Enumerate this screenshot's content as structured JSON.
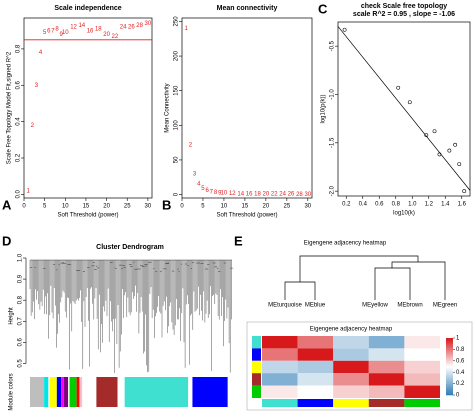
{
  "chart_data": [
    {
      "type": "text-scatter",
      "panel": "A",
      "title": "Scale independence",
      "xlabel": "Soft Threshold (power)",
      "ylabel": "Scale Free Topology Model Fit,signed R^2",
      "color": "#e41a1c",
      "x": [
        1,
        2,
        3,
        4,
        5,
        6,
        7,
        8,
        9,
        10,
        12,
        14,
        16,
        18,
        20,
        22,
        24,
        26,
        28,
        30
      ],
      "values": [
        0.02,
        0.38,
        0.6,
        0.78,
        0.89,
        0.9,
        0.9,
        0.91,
        0.88,
        0.89,
        0.92,
        0.93,
        0.9,
        0.91,
        0.88,
        0.87,
        0.92,
        0.92,
        0.93,
        0.94
      ],
      "xlim": [
        0,
        31
      ],
      "xticks": [
        0,
        5,
        10,
        15,
        20,
        25,
        30
      ],
      "ylim": [
        -0.02,
        0.97
      ],
      "yticks": [
        {
          "value": 0,
          "label": "0.0"
        },
        0.2,
        0.4,
        0.6,
        0.8
      ],
      "hline": 0.85
    },
    {
      "type": "text-scatter",
      "panel": "B",
      "title": "Mean connectivity",
      "xlabel": "Soft Threshold (power)",
      "ylabel": "Mean Connectivity",
      "color": "#e41a1c",
      "x": [
        1,
        2,
        3,
        4,
        5,
        6,
        7,
        8,
        9,
        10,
        12,
        14,
        16,
        18,
        20,
        22,
        24,
        26,
        28,
        30
      ],
      "values": [
        240,
        72,
        30,
        15,
        9,
        6,
        4,
        3,
        2.5,
        2,
        1.5,
        1.2,
        1,
        0.9,
        0.8,
        0.7,
        0.6,
        0.6,
        0.5,
        0.5
      ],
      "xlim": [
        0,
        31
      ],
      "xticks": [
        0,
        5,
        10,
        15,
        20,
        25,
        30
      ],
      "ylim": [
        -5,
        255
      ],
      "yticks": [
        0,
        50,
        100,
        150,
        200,
        250
      ]
    },
    {
      "type": "scatter",
      "panel": "C",
      "title": "check Scale free topology",
      "subtitle": "scale R^2 = 0.95 , slope = -1.06",
      "xlabel": "log10(k)",
      "ylabel": "log10(p(k))",
      "color": "#000000",
      "x": [
        0.18,
        0.83,
        0.97,
        1.17,
        1.27,
        1.33,
        1.45,
        1.52,
        1.57,
        1.63
      ],
      "values": [
        -0.33,
        -0.93,
        -1.08,
        -1.42,
        -1.38,
        -1.62,
        -1.58,
        -1.52,
        -1.72,
        -2.0
      ],
      "xlim": [
        0.1,
        1.7
      ],
      "xticks": [
        0.2,
        0.4,
        0.6,
        0.8,
        {
          "value": 1,
          "label": "1.0"
        },
        1.2,
        1.4,
        1.6
      ],
      "ylim": [
        -2.05,
        -0.25
      ],
      "yticks": [
        {
          "value": -2,
          "label": "-2.0"
        },
        -1.5,
        {
          "value": -1,
          "label": "-1.0"
        },
        -0.5
      ],
      "fit": {
        "slope": -1.06,
        "intercept": -0.19
      }
    },
    {
      "type": "dendrogram",
      "panel": "D",
      "title": "Cluster Dendrogram",
      "ylabel": "Height",
      "colors_label": "Module colors",
      "ylim": [
        0.45,
        1.0
      ],
      "yticks": [
        0.5,
        0.6,
        0.7,
        0.8,
        0.9,
        {
          "value": 1,
          "label": "1.0"
        }
      ],
      "module_colors": [
        "#bebebe",
        "#00e5e5",
        "#ffffff",
        "#ffff00",
        "#0000ff",
        "#ff00ff",
        "#800080",
        "#ffffff",
        "#00cc00",
        "#ff0000",
        "#ffc0cb",
        "#ffffff",
        "#a52a2a",
        "#ffffff",
        "#40e0d0",
        "#ffffff",
        "#0000ff",
        "#ffffff"
      ],
      "module_sizes": [
        10,
        3,
        1,
        5,
        3,
        2,
        3,
        1,
        5,
        2,
        2,
        10,
        15,
        5,
        45,
        3,
        25,
        3
      ]
    },
    {
      "type": "heatmap",
      "panel": "E",
      "title": "Eigengene adjacency heatmap",
      "heatmap_title": "Eigengene adjacency heatmap",
      "labels": [
        "MEturquoise",
        "MEblue",
        "MEyellow",
        "MEbrown",
        "MEgreen"
      ],
      "module_colors": [
        "#40e0d0",
        "#0000ff",
        "#ffff00",
        "#a52a2a",
        "#00cc00"
      ],
      "matrix": [
        [
          1,
          0.8,
          0.35,
          0.2,
          0.55
        ],
        [
          0.8,
          1,
          0.3,
          0.4,
          0.5
        ],
        [
          0.35,
          0.3,
          1,
          0.75,
          0.6
        ],
        [
          0.2,
          0.4,
          0.75,
          1,
          0.65
        ],
        [
          0.55,
          0.5,
          0.6,
          0.65,
          1
        ]
      ],
      "colorscale": [
        "#2c7bb6",
        "#ffffff",
        "#d7191c"
      ],
      "clim": [
        0,
        1
      ],
      "cticks": [
        0,
        0.2,
        0.4,
        0.6,
        0.8,
        1
      ]
    }
  ]
}
